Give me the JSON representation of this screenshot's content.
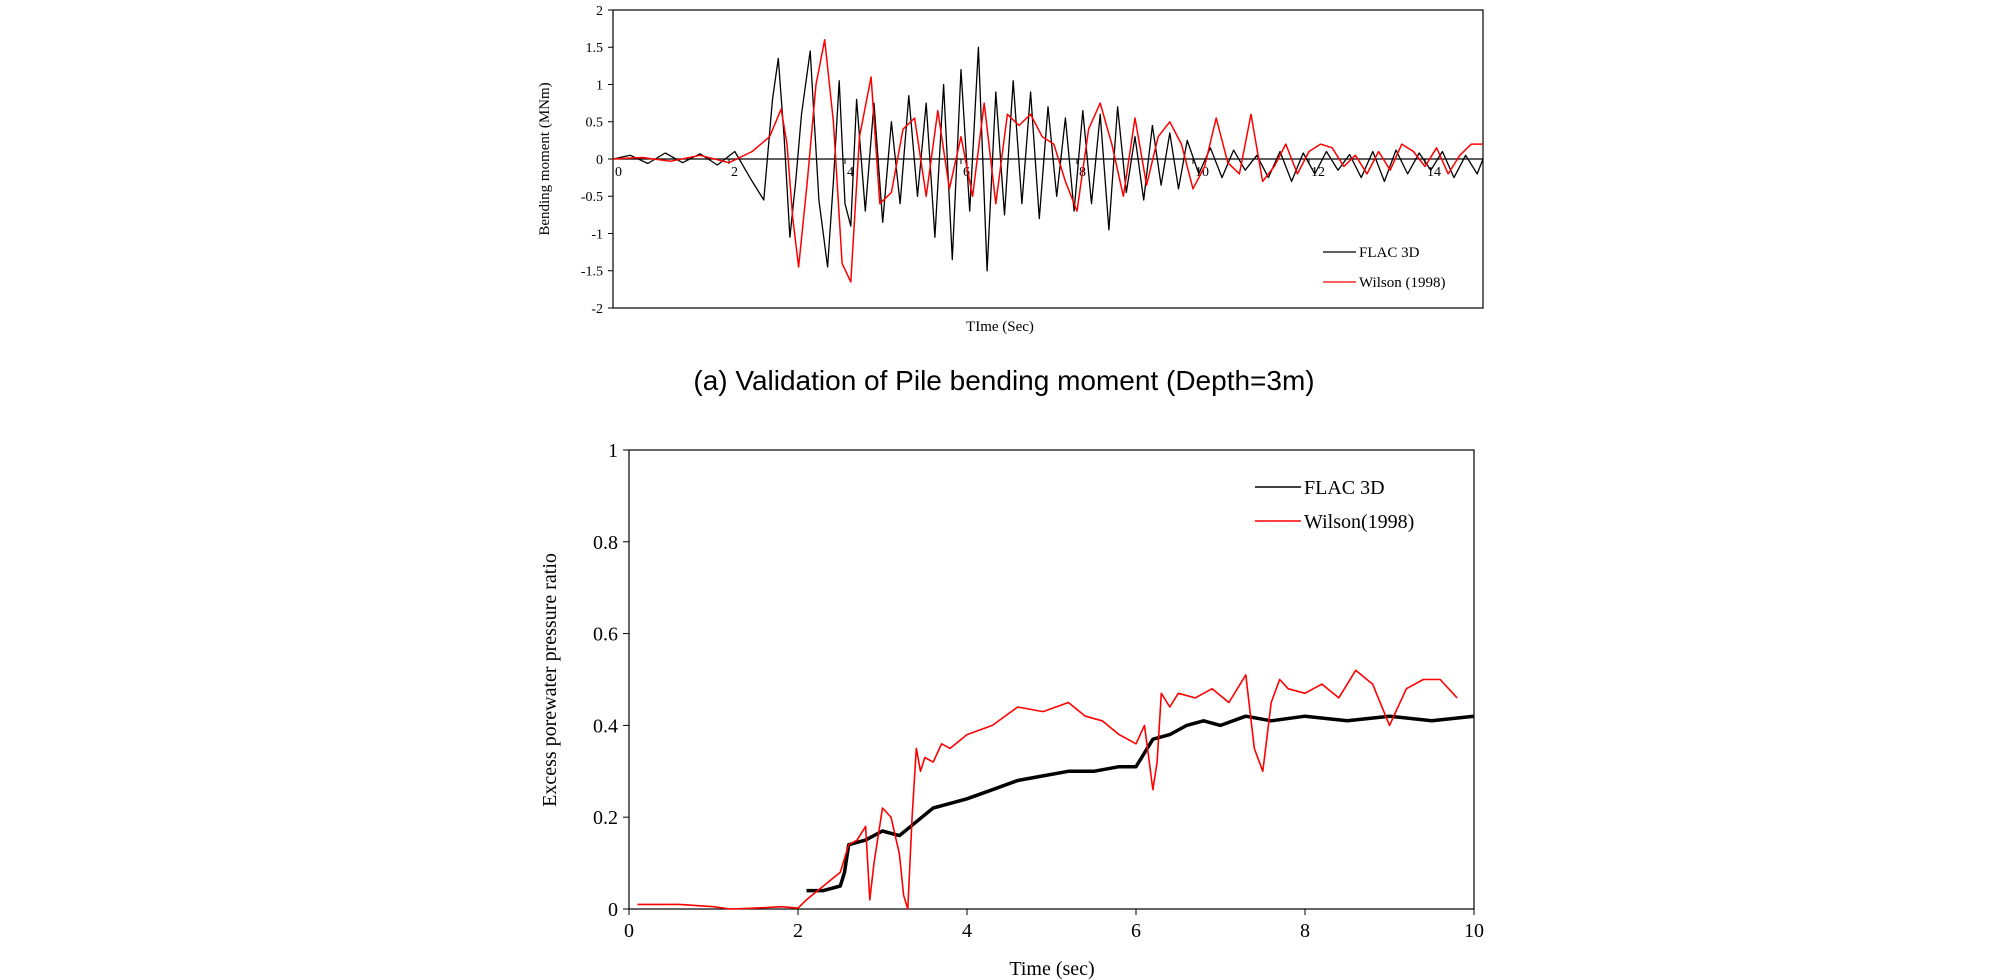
{
  "colors": {
    "flac": "#000000",
    "wilson": "#ff0000",
    "axis": "#000000"
  },
  "chart_data": [
    {
      "type": "line",
      "caption": "(a) Validation of Pile bending moment (Depth=3m)",
      "xlabel": "TIme (Sec)",
      "ylabel": "Bending moment (MNm)",
      "xlim": [
        0,
        15
      ],
      "ylim": [
        -2,
        2
      ],
      "xticks": [
        0,
        2,
        4,
        6,
        8,
        10,
        12,
        14
      ],
      "yticks": [
        2,
        1.5,
        1,
        0.5,
        0,
        -0.5,
        -1,
        -1.5,
        -2
      ],
      "ytick_labels": [
        "2",
        "1.5",
        "1",
        "0.5",
        "0",
        "-0.5",
        "-1",
        "-1.5",
        "-2"
      ],
      "legend_position": "bottom-right",
      "series": [
        {
          "name": "FLAC 3D",
          "x": [
            0,
            0.3,
            0.6,
            0.9,
            1.2,
            1.5,
            1.8,
            2.1,
            2.4,
            2.6,
            2.75,
            2.85,
            2.95,
            3.05,
            3.15,
            3.25,
            3.4,
            3.55,
            3.7,
            3.8,
            3.9,
            4.0,
            4.1,
            4.2,
            4.35,
            4.5,
            4.65,
            4.8,
            4.95,
            5.1,
            5.25,
            5.4,
            5.55,
            5.7,
            5.85,
            6.0,
            6.15,
            6.3,
            6.45,
            6.6,
            6.75,
            6.9,
            7.05,
            7.2,
            7.35,
            7.5,
            7.65,
            7.8,
            7.95,
            8.1,
            8.25,
            8.4,
            8.55,
            8.7,
            8.85,
            9.0,
            9.15,
            9.3,
            9.45,
            9.6,
            9.75,
            9.9,
            10.1,
            10.3,
            10.5,
            10.7,
            10.9,
            11.1,
            11.3,
            11.5,
            11.7,
            11.9,
            12.1,
            12.3,
            12.5,
            12.7,
            12.9,
            13.1,
            13.3,
            13.5,
            13.7,
            13.9,
            14.1,
            14.3,
            14.5,
            14.7,
            14.9,
            15.0
          ],
          "y": [
            0,
            0.05,
            -0.06,
            0.08,
            -0.05,
            0.07,
            -0.08,
            0.1,
            -0.3,
            -0.55,
            0.8,
            1.35,
            0.3,
            -1.05,
            -0.3,
            0.6,
            1.45,
            -0.55,
            -1.45,
            -0.3,
            1.05,
            -0.6,
            -0.9,
            0.8,
            -0.7,
            0.75,
            -0.85,
            0.5,
            -0.6,
            0.85,
            -0.5,
            0.75,
            -1.05,
            1.0,
            -1.35,
            1.2,
            -0.7,
            1.5,
            -1.5,
            0.9,
            -0.75,
            1.05,
            -0.6,
            0.9,
            -0.8,
            0.7,
            -0.5,
            0.55,
            -0.7,
            0.65,
            -0.6,
            0.6,
            -0.95,
            0.7,
            -0.45,
            0.3,
            -0.55,
            0.45,
            -0.35,
            0.35,
            -0.4,
            0.25,
            -0.2,
            0.15,
            -0.25,
            0.12,
            -0.15,
            0.05,
            -0.25,
            0.1,
            -0.3,
            0.08,
            -0.2,
            0.1,
            -0.15,
            0.06,
            -0.25,
            0.1,
            -0.3,
            0.12,
            -0.2,
            0.08,
            -0.15,
            0.1,
            -0.25,
            0.05,
            -0.2,
            0
          ]
        },
        {
          "name": "Wilson (1998)",
          "x": [
            0,
            0.5,
            1.0,
            1.5,
            2.0,
            2.4,
            2.7,
            2.9,
            3.0,
            3.1,
            3.2,
            3.35,
            3.5,
            3.65,
            3.8,
            3.95,
            4.1,
            4.25,
            4.45,
            4.6,
            4.8,
            5.0,
            5.2,
            5.4,
            5.6,
            5.8,
            6.0,
            6.2,
            6.4,
            6.6,
            6.8,
            7.0,
            7.2,
            7.4,
            7.6,
            7.8,
            8.0,
            8.2,
            8.4,
            8.6,
            8.8,
            9.0,
            9.2,
            9.4,
            9.6,
            9.8,
            10.0,
            10.2,
            10.4,
            10.6,
            10.8,
            11.0,
            11.2,
            11.4,
            11.6,
            11.8,
            12.0,
            12.2,
            12.4,
            12.6,
            12.8,
            13.0,
            13.2,
            13.4,
            13.6,
            13.8,
            14.0,
            14.2,
            14.4,
            14.6,
            14.8,
            15.0
          ],
          "y": [
            0,
            0.02,
            -0.03,
            0.05,
            -0.05,
            0.1,
            0.3,
            0.67,
            0.2,
            -0.8,
            -1.45,
            -0.3,
            1.0,
            1.6,
            0.5,
            -1.4,
            -1.65,
            0.3,
            1.1,
            -0.6,
            -0.45,
            0.4,
            0.55,
            -0.5,
            0.65,
            -0.4,
            0.3,
            -0.5,
            0.75,
            -0.6,
            0.6,
            0.45,
            0.6,
            0.3,
            0.2,
            -0.3,
            -0.7,
            0.4,
            0.75,
            0.2,
            -0.5,
            0.55,
            -0.35,
            0.3,
            0.5,
            0.2,
            -0.4,
            -0.1,
            0.55,
            -0.05,
            -0.2,
            0.6,
            -0.3,
            -0.1,
            0.2,
            -0.2,
            0.1,
            0.2,
            0.15,
            -0.1,
            0.05,
            -0.2,
            0.1,
            -0.15,
            0.2,
            0.1,
            -0.1,
            0.15,
            -0.2,
            0.05,
            0.2,
            0.2
          ]
        }
      ]
    },
    {
      "type": "line",
      "xlabel": "Time (sec)",
      "ylabel": "Excess porewater pressure ratio",
      "xlim": [
        0,
        10
      ],
      "ylim": [
        0,
        1
      ],
      "xticks": [
        0,
        2,
        4,
        6,
        8,
        10
      ],
      "yticks": [
        0,
        0.2,
        0.4,
        0.6,
        0.8,
        1
      ],
      "ytick_labels": [
        "0",
        "0.2",
        "0.4",
        "0.6",
        "0.8",
        "1"
      ],
      "legend_position": "top-right",
      "series": [
        {
          "name": "FLAC 3D",
          "x": [
            2.1,
            2.3,
            2.5,
            2.55,
            2.6,
            2.8,
            3.0,
            3.2,
            3.4,
            3.6,
            3.8,
            4.0,
            4.3,
            4.6,
            4.9,
            5.2,
            5.5,
            5.8,
            6.0,
            6.2,
            6.4,
            6.6,
            6.8,
            7.0,
            7.3,
            7.6,
            8.0,
            8.5,
            9.0,
            9.5,
            10.0
          ],
          "y": [
            0.04,
            0.04,
            0.05,
            0.08,
            0.14,
            0.15,
            0.17,
            0.16,
            0.19,
            0.22,
            0.23,
            0.24,
            0.26,
            0.28,
            0.29,
            0.3,
            0.3,
            0.31,
            0.31,
            0.37,
            0.38,
            0.4,
            0.41,
            0.4,
            0.42,
            0.41,
            0.42,
            0.41,
            0.42,
            0.41,
            0.42
          ]
        },
        {
          "name": "Wilson(1998)",
          "x": [
            0.1,
            0.6,
            1.0,
            1.2,
            1.5,
            1.8,
            2.0,
            2.1,
            2.3,
            2.5,
            2.6,
            2.7,
            2.8,
            2.85,
            2.9,
            3.0,
            3.1,
            3.2,
            3.25,
            3.3,
            3.35,
            3.4,
            3.45,
            3.5,
            3.6,
            3.7,
            3.8,
            4.0,
            4.3,
            4.6,
            4.9,
            5.2,
            5.4,
            5.6,
            5.8,
            6.0,
            6.1,
            6.2,
            6.25,
            6.3,
            6.4,
            6.5,
            6.7,
            6.9,
            7.1,
            7.3,
            7.4,
            7.5,
            7.6,
            7.7,
            7.8,
            8.0,
            8.2,
            8.4,
            8.6,
            8.8,
            9.0,
            9.2,
            9.4,
            9.6,
            9.8
          ],
          "y": [
            0.01,
            0.01,
            0.005,
            0,
            0.002,
            0.005,
            0.002,
            0.02,
            0.05,
            0.08,
            0.14,
            0.15,
            0.18,
            0.02,
            0.1,
            0.22,
            0.2,
            0.12,
            0.03,
            0.0,
            0.2,
            0.35,
            0.3,
            0.33,
            0.32,
            0.36,
            0.35,
            0.38,
            0.4,
            0.44,
            0.43,
            0.45,
            0.42,
            0.41,
            0.38,
            0.36,
            0.4,
            0.26,
            0.32,
            0.47,
            0.44,
            0.47,
            0.46,
            0.48,
            0.45,
            0.51,
            0.35,
            0.3,
            0.45,
            0.5,
            0.48,
            0.47,
            0.49,
            0.46,
            0.52,
            0.49,
            0.4,
            0.48,
            0.5,
            0.5,
            0.46
          ]
        }
      ]
    }
  ]
}
